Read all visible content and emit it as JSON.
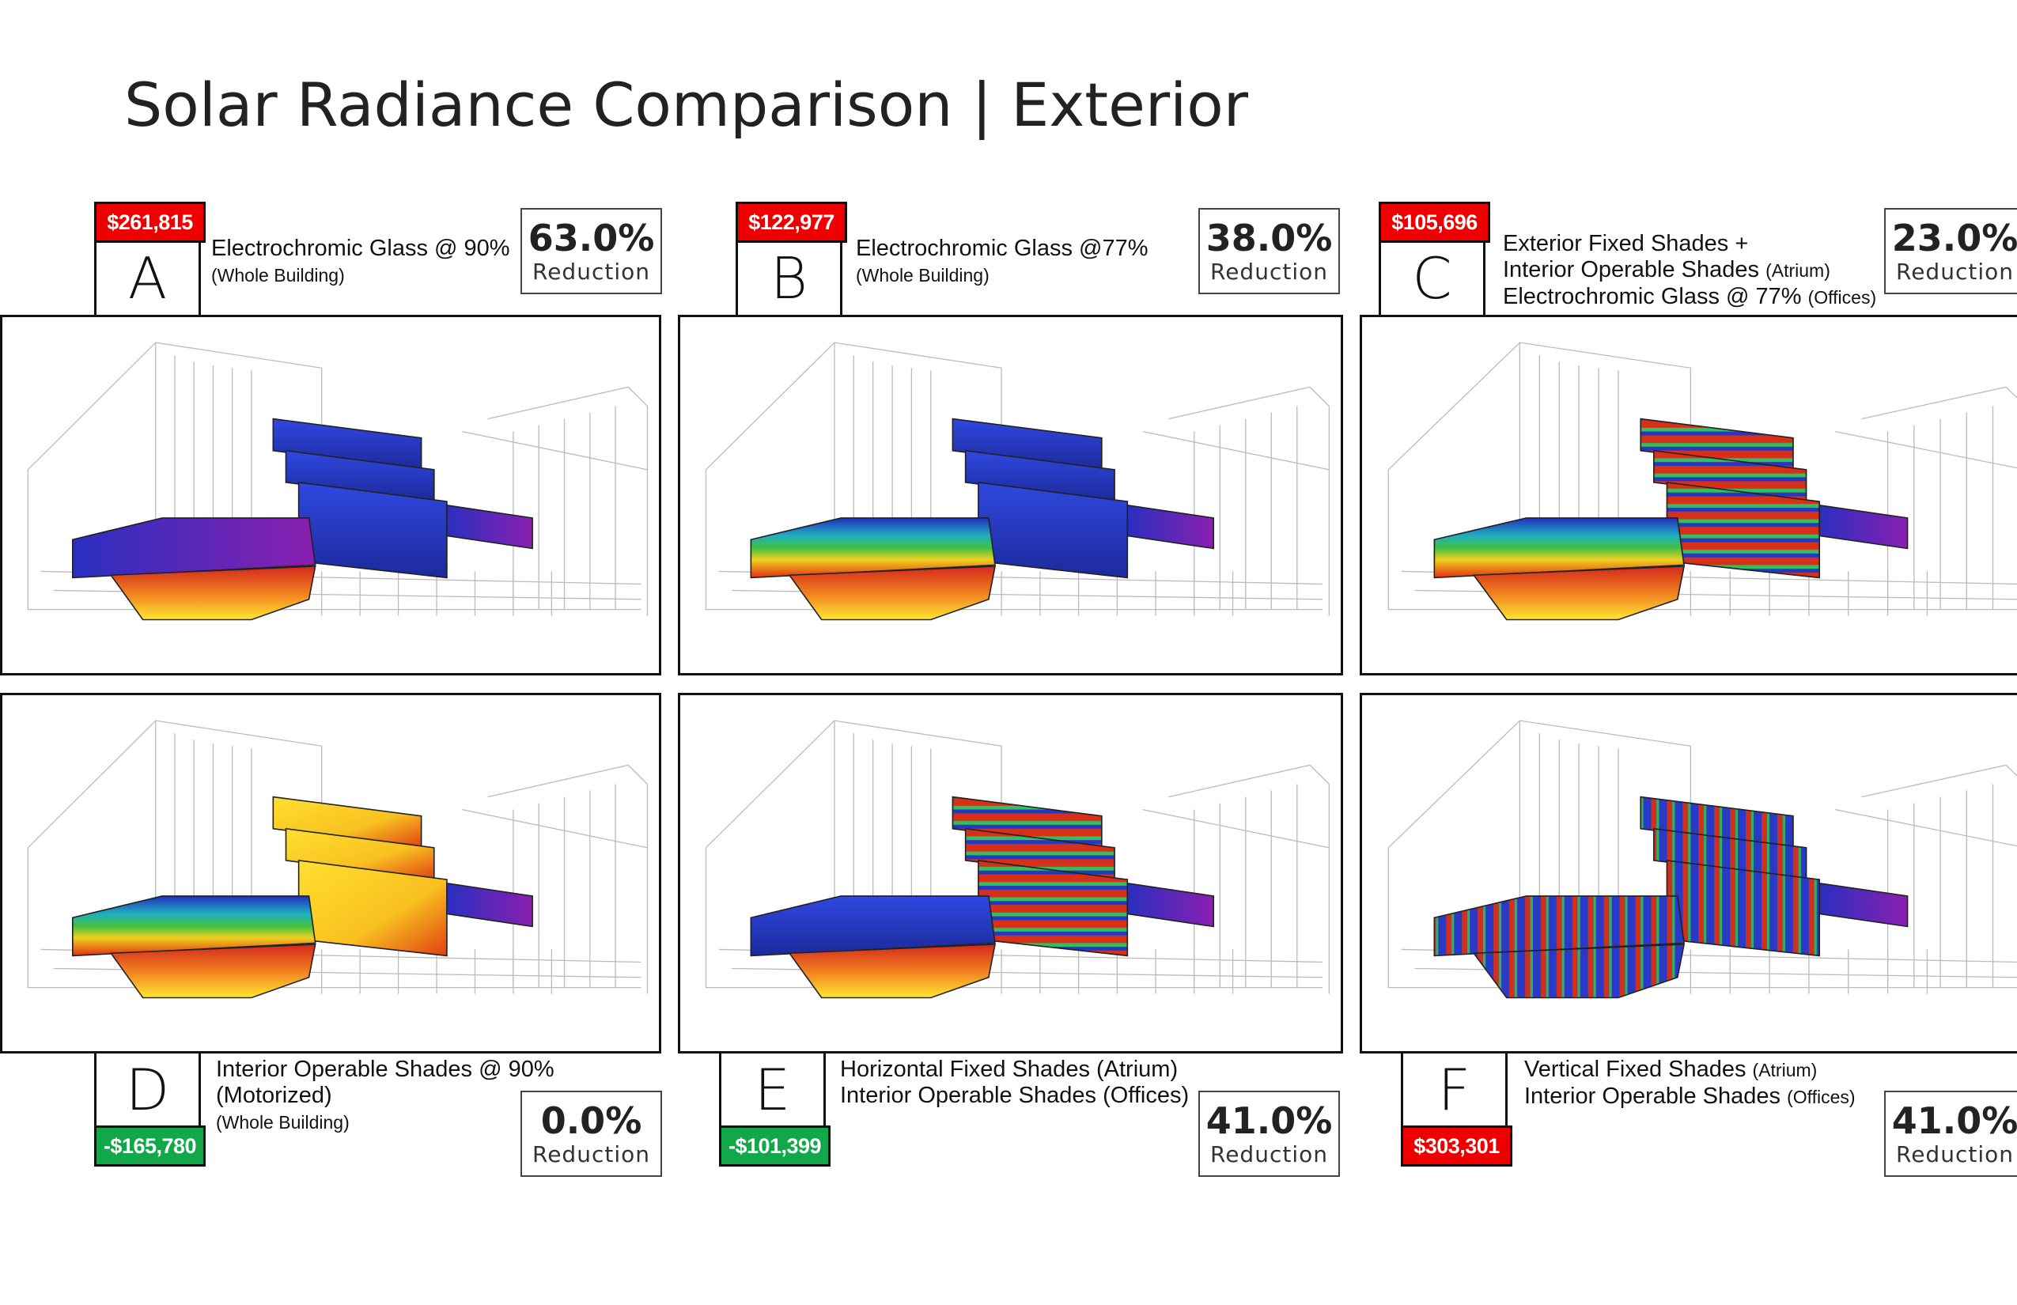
{
  "title": "Solar Radiance Comparison  |  Exterior",
  "colors": {
    "cost_increase": "#ee0000",
    "cost_savings": "#12a84a",
    "border": "#111111"
  },
  "options": [
    {
      "letter": "A",
      "cost": "$261,815",
      "cost_status": "increase",
      "reduction": "63.0%",
      "reduction_label": "Reduction",
      "description": [
        {
          "text": "Electrochromic Glass @ 90%",
          "small": ""
        },
        {
          "text": "",
          "small": "(Whole Building)"
        }
      ]
    },
    {
      "letter": "B",
      "cost": "$122,977",
      "cost_status": "increase",
      "reduction": "38.0%",
      "reduction_label": "Reduction",
      "description": [
        {
          "text": "Electrochromic Glass @77%",
          "small": ""
        },
        {
          "text": "",
          "small": "(Whole Building)"
        }
      ]
    },
    {
      "letter": "C",
      "cost": "$105,696",
      "cost_status": "increase",
      "reduction": "23.0%",
      "reduction_label": "Reduction",
      "description": [
        {
          "text": "Exterior Fixed Shades +",
          "small": ""
        },
        {
          "text": "Interior Operable Shades",
          "small": "(Atrium)"
        },
        {
          "text": "Electrochromic Glass @ 77%",
          "small": "(Offices)"
        }
      ]
    },
    {
      "letter": "D",
      "cost": "-$165,780",
      "cost_status": "savings",
      "reduction": "0.0%",
      "reduction_label": "Reduction",
      "description": [
        {
          "text": "Interior Operable Shades @ 90%",
          "small": ""
        },
        {
          "text": "(Motorized)",
          "small": ""
        },
        {
          "text": "",
          "small": "(Whole Building)"
        }
      ]
    },
    {
      "letter": "E",
      "cost": "-$101,399",
      "cost_status": "savings",
      "reduction": "41.0%",
      "reduction_label": "Reduction",
      "description": [
        {
          "text": "Horizontal Fixed Shades (Atrium)",
          "small": ""
        },
        {
          "text": "Interior Operable Shades (Offices)",
          "small": ""
        }
      ]
    },
    {
      "letter": "F",
      "cost": "$303,301",
      "cost_status": "increase",
      "reduction": "41.0%",
      "reduction_label": "Reduction",
      "description": [
        {
          "text": "Vertical Fixed Shades",
          "small": "(Atrium)"
        },
        {
          "text": "Interior Operable Shades",
          "small": "(Offices)"
        }
      ]
    }
  ]
}
